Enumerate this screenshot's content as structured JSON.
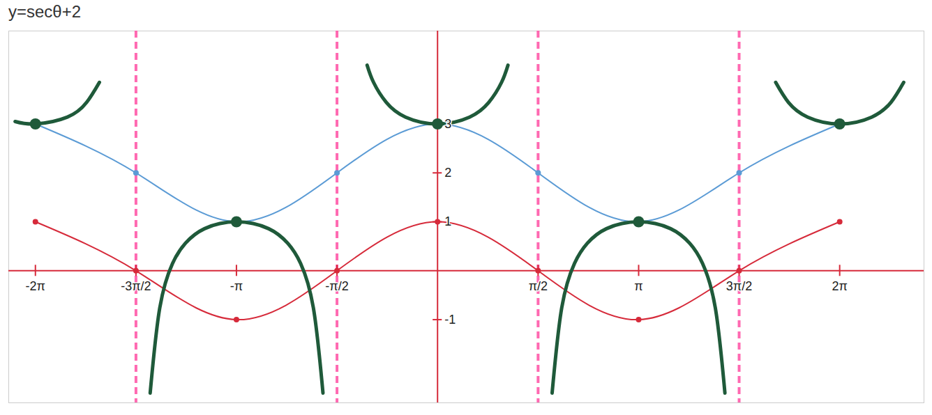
{
  "chart_data": {
    "type": "line",
    "title": "y=secθ+2",
    "xlim": [
      -6.7,
      7.6
    ],
    "ylim": [
      -2.7,
      4.9
    ],
    "xticks": [
      {
        "value": -6.283,
        "label": "-2π"
      },
      {
        "value": -4.712,
        "label": "-3π/2"
      },
      {
        "value": -3.142,
        "label": "-π"
      },
      {
        "value": -1.571,
        "label": "-π/2"
      },
      {
        "value": 1.571,
        "label": "π/2"
      },
      {
        "value": 3.142,
        "label": "π"
      },
      {
        "value": 4.712,
        "label": "3π/2"
      },
      {
        "value": 6.283,
        "label": "2π"
      }
    ],
    "yticks": [
      -1,
      1,
      2,
      3
    ],
    "grid": false,
    "asymptotes": [
      -4.712,
      -1.571,
      1.571,
      4.712
    ],
    "asymptote_color": "#ff4fa3",
    "series": [
      {
        "type": "line",
        "color": "#d62a3a",
        "marker": "circle",
        "line_style": "solid",
        "x": [
          -6.283,
          -4.712,
          -3.142,
          -1.571,
          0,
          1.571,
          3.142,
          4.712,
          6.283
        ],
        "values": [
          1,
          0,
          -1,
          0,
          1,
          0,
          -1,
          0,
          1
        ]
      },
      {
        "type": "line",
        "color": "#5b9bd5",
        "marker": "circle",
        "line_style": "solid",
        "x": [
          -6.283,
          -4.712,
          -3.142,
          -1.571,
          0,
          1.571,
          3.142,
          4.712,
          6.283
        ],
        "values": [
          3,
          2,
          1,
          2,
          3,
          2,
          1,
          2,
          3
        ]
      },
      {
        "type": "line",
        "color": "#1f5a3a",
        "marker": "none",
        "line_style": "solid",
        "x": [
          -6.6,
          -6.283,
          -5.783,
          -5.483,
          -5.283,
          null,
          -4.49,
          -4.34,
          -4.14,
          -3.94,
          -3.64,
          -3.142,
          -2.64,
          -2.34,
          -2.14,
          -1.94,
          -1.79,
          null,
          -1.1,
          -1.0,
          -0.8,
          -0.5,
          0,
          0.5,
          0.8,
          1.0,
          1.1,
          null,
          1.79,
          1.94,
          2.14,
          2.34,
          2.64,
          3.142,
          3.64,
          3.94,
          4.14,
          4.34,
          4.49,
          null,
          5.283,
          5.483,
          5.783,
          6.283,
          6.783,
          7.083,
          7.283
        ],
        "values": [
          3.05,
          3,
          3.14,
          3.44,
          3.85,
          null,
          -2.5,
          -0.76,
          0.15,
          0.56,
          0.86,
          1,
          0.86,
          0.56,
          0.15,
          -0.76,
          -2.5,
          null,
          4.2,
          3.85,
          3.44,
          3.14,
          3,
          3.14,
          3.44,
          3.85,
          4.2,
          null,
          -2.5,
          -0.76,
          0.15,
          0.56,
          0.86,
          1,
          0.86,
          0.56,
          0.15,
          -0.76,
          -2.5,
          null,
          3.85,
          3.44,
          3.14,
          3,
          3.14,
          3.44,
          3.85
        ]
      },
      {
        "type": "scatter",
        "color": "#1f5a3a",
        "marker": "circle",
        "x": [
          -6.283,
          -3.142,
          0,
          3.142,
          6.283
        ],
        "values": [
          3,
          1,
          3,
          1,
          3
        ]
      }
    ]
  }
}
